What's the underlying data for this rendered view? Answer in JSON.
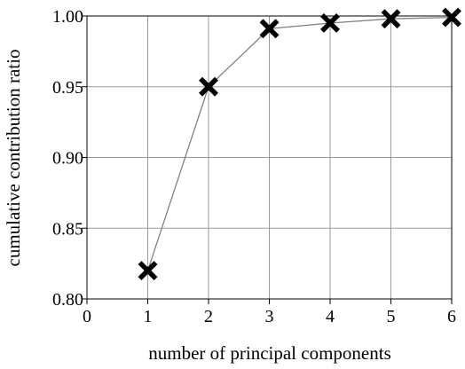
{
  "chart_data": {
    "type": "line",
    "title": "",
    "xlabel": "number of principal components",
    "ylabel": "cumulative contribution ratio",
    "xlim": [
      0,
      6
    ],
    "ylim": [
      0.8,
      1.0
    ],
    "x_ticks": [
      "0",
      "1",
      "2",
      "3",
      "4",
      "5",
      "6"
    ],
    "y_ticks": [
      "0.80",
      "0.85",
      "0.90",
      "0.95",
      "1.00"
    ],
    "grid": true,
    "marker": "x",
    "series": [
      {
        "x": [
          1,
          2,
          3,
          4,
          5,
          6
        ],
        "values": [
          0.82,
          0.95,
          0.991,
          0.995,
          0.998,
          0.999
        ]
      }
    ],
    "colors": {
      "line": "#808080",
      "grid": "#999999",
      "marker": "#000000",
      "axis": "#000000"
    }
  }
}
